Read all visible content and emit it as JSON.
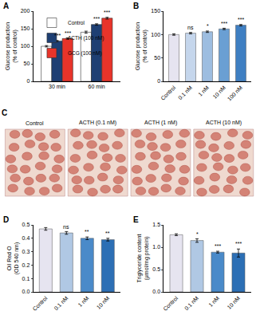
{
  "chart_data": [
    {
      "panel": "A",
      "type": "bar",
      "categories": [
        "30 min",
        "60 min"
      ],
      "series": [
        {
          "name": "Control",
          "color": "#ffffff",
          "values": [
            100,
            140
          ],
          "errors": [
            2,
            3
          ],
          "significance": [
            null,
            null
          ]
        },
        {
          "name": "ACTH (100 nM)",
          "color": "#1e3f73",
          "values": [
            115,
            162
          ],
          "errors": [
            1.5,
            2
          ],
          "significance": [
            "***",
            "***"
          ]
        },
        {
          "name": "GCG (100 nM)",
          "color": "#e8342a",
          "values": [
            122,
            180
          ],
          "errors": [
            2,
            2.5
          ],
          "significance": [
            "***",
            "***"
          ]
        }
      ],
      "ylabel": "Glucose production (% of control)",
      "ylim": [
        0,
        200
      ],
      "yticks": [
        0,
        50,
        100,
        150,
        200
      ],
      "legend": "upper left",
      "grid": false
    },
    {
      "panel": "B",
      "type": "bar",
      "categories": [
        "Control",
        "0.1 nM",
        "1 nM",
        "10 nM",
        "100 nM"
      ],
      "values": [
        100,
        103,
        106,
        112,
        120
      ],
      "errors": [
        1.5,
        1.5,
        1.5,
        1.5,
        1.5
      ],
      "significance": [
        null,
        "ns",
        "*",
        "***",
        "***"
      ],
      "colors": [
        "#e6e4f0",
        "#c5d6ec",
        "#9dbde0",
        "#6a9fd3",
        "#3f7fc2"
      ],
      "ylabel": "Glucose production (% of control)",
      "ylim": [
        0,
        150
      ],
      "yticks": [
        0,
        50,
        100,
        150
      ],
      "grid": false
    },
    {
      "panel": "C",
      "type": "image",
      "labels": [
        "Control",
        "ACTH (0.1 nM)",
        "ACTH (1 nM)",
        "ACTH (10 nM)"
      ]
    },
    {
      "panel": "D",
      "type": "bar",
      "categories": [
        "Control",
        "0.1 nM",
        "1 nM",
        "10 nM"
      ],
      "values": [
        0.47,
        0.44,
        0.4,
        0.39
      ],
      "errors": [
        0.01,
        0.01,
        0.01,
        0.01
      ],
      "significance": [
        null,
        "ns",
        "**",
        "**"
      ],
      "colors": [
        "#e6e4f0",
        "#b0c8e4",
        "#4a8ac9",
        "#2c6fb5"
      ],
      "ylabel": "Oil Red O (OD 540 nm)",
      "ylim": [
        0,
        0.5
      ],
      "yticks": [
        {
          "value": 0,
          "label": "0.0"
        },
        0.1,
        0.2,
        0.3,
        0.4,
        0.5
      ],
      "grid": false
    },
    {
      "panel": "E",
      "type": "bar",
      "categories": [
        "Control",
        "0.1 nM",
        "1 nM",
        "10 nM"
      ],
      "values": [
        1.28,
        1.15,
        0.89,
        0.87
      ],
      "errors": [
        0.02,
        0.04,
        0.02,
        0.09
      ],
      "significance": [
        null,
        "*",
        "***",
        "***"
      ],
      "colors": [
        "#e6e4f0",
        "#b0c8e4",
        "#4a8ac9",
        "#2c6fb5"
      ],
      "ylabel": "Triglyceride content (μmol/mg protein)",
      "ylim": [
        0,
        1.5
      ],
      "yticks": [
        {
          "value": 0,
          "label": "0.0"
        },
        0.5,
        {
          "value": 1,
          "label": "1.0"
        },
        1.5
      ],
      "grid": false
    }
  ]
}
